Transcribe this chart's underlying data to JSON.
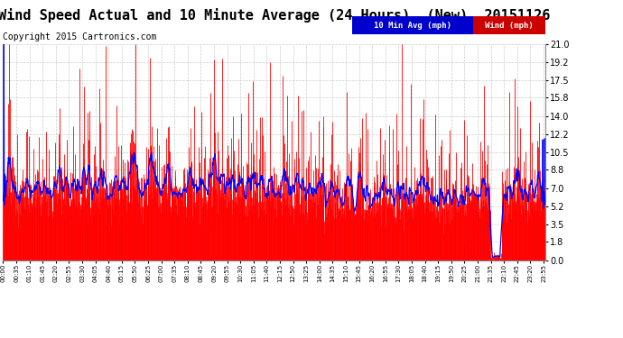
{
  "title": "Wind Speed Actual and 10 Minute Average (24 Hours)  (New)  20151126",
  "copyright": "Copyright 2015 Cartronics.com",
  "legend_labels": [
    "10 Min Avg (mph)",
    "Wind (mph)"
  ],
  "yticks": [
    0.0,
    1.8,
    3.5,
    5.2,
    7.0,
    8.8,
    10.5,
    12.2,
    14.0,
    15.8,
    17.5,
    19.2,
    21.0
  ],
  "ymin": 0.0,
  "ymax": 21.0,
  "bg_color": "#ffffff",
  "grid_color": "#cccccc",
  "wind_color": "#ff0000",
  "avg_color": "#0000ff",
  "dark_color": "#333333",
  "title_fontsize": 11,
  "copyright_fontsize": 7,
  "tick_interval_minutes": 35,
  "n_points": 1440
}
